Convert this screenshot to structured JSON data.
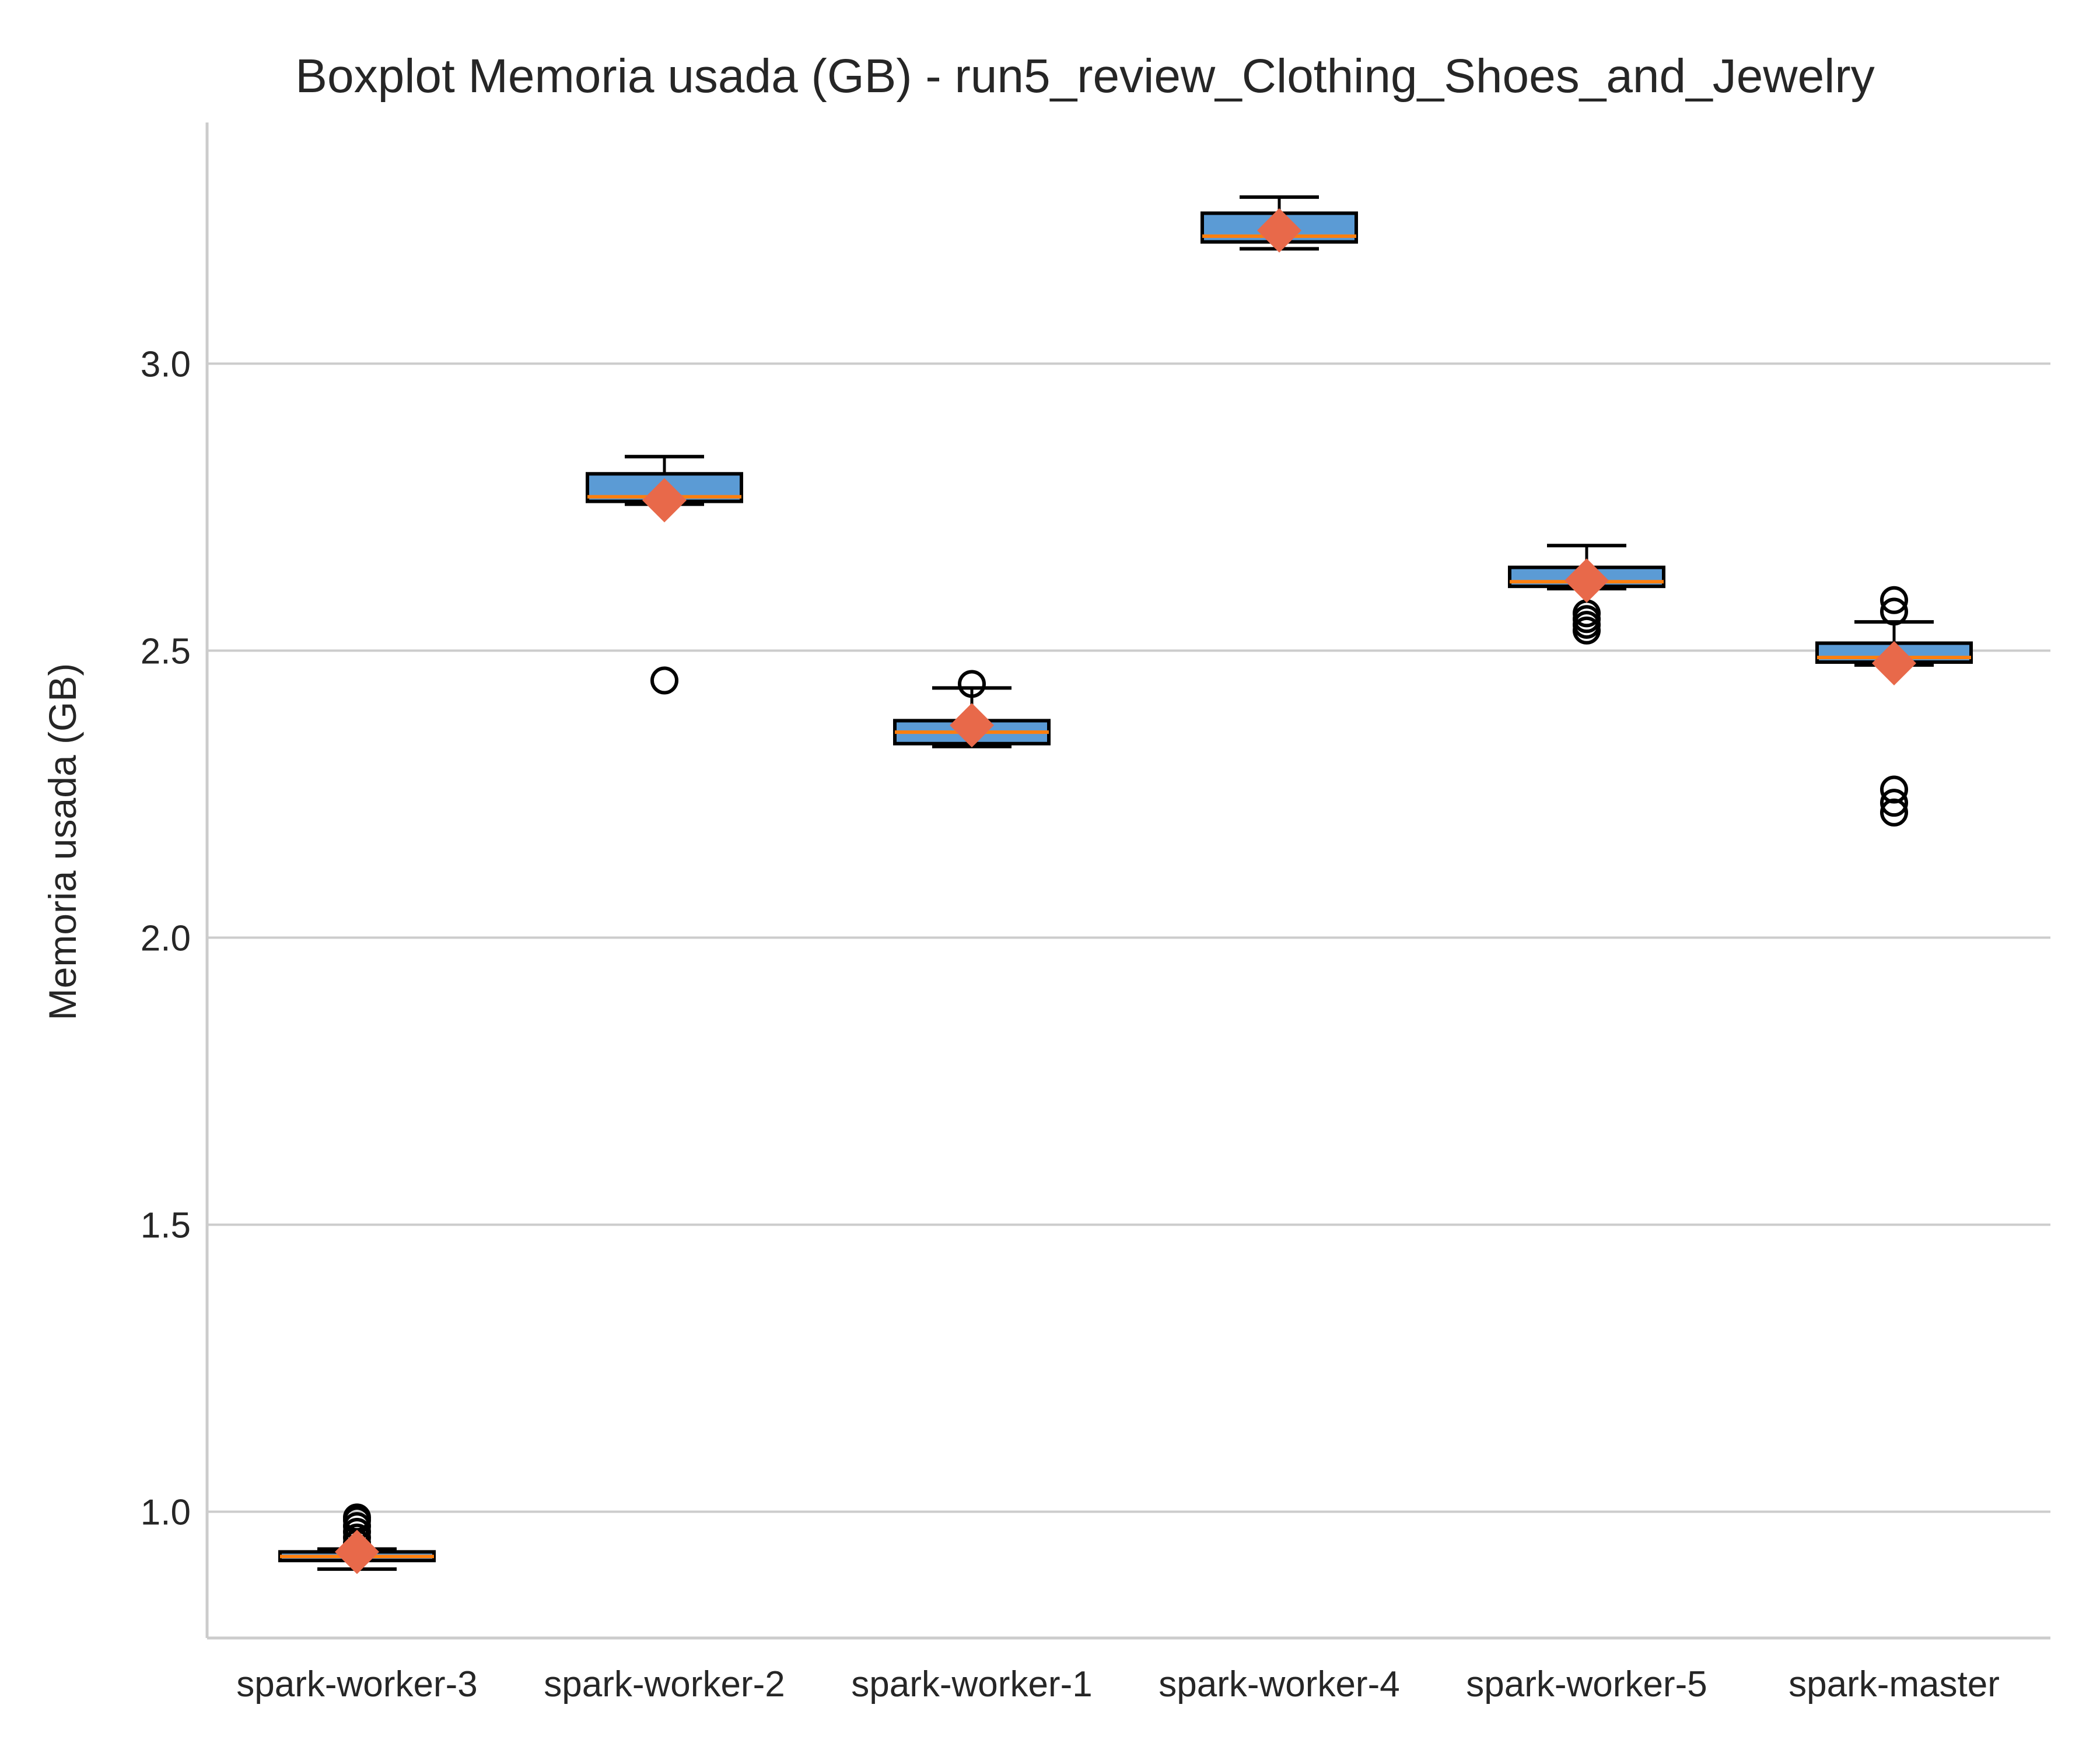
{
  "chart_data": {
    "type": "boxplot",
    "title": "Boxplot Memoria usada (GB) - run5_review_Clothing_Shoes_and_Jewelry",
    "xlabel": "",
    "ylabel": "Memoria usada (GB)",
    "ylim": [
      0.78,
      3.42
    ],
    "yticks": [
      1.0,
      1.5,
      2.0,
      2.5,
      3.0
    ],
    "ytick_labels": [
      "1.0",
      "1.5",
      "2.0",
      "2.5",
      "3.0"
    ],
    "grid": "horizontal",
    "colors": {
      "box_fill": "#5b9bd5",
      "box_edge": "#000000",
      "median": "#ff7f0e",
      "mean_marker": "#e8694a",
      "flier": "#000000",
      "grid": "#cccccc"
    },
    "categories": [
      "spark-worker-3",
      "spark-worker-2",
      "spark-worker-1",
      "spark-worker-4",
      "spark-worker-5",
      "spark-master"
    ],
    "boxes": [
      {
        "whisker_low": 0.9,
        "q1": 0.915,
        "median": 0.922,
        "q3": 0.93,
        "whisker_high": 0.935,
        "mean": 0.93,
        "outliers": [
          0.945,
          0.955,
          0.965,
          0.975,
          0.985,
          0.99
        ]
      },
      {
        "whisker_low": 2.755,
        "q1": 2.76,
        "median": 2.768,
        "q3": 2.808,
        "whisker_high": 2.838,
        "mean": 2.762,
        "outliers": [
          2.448
        ]
      },
      {
        "whisker_low": 2.333,
        "q1": 2.338,
        "median": 2.358,
        "q3": 2.378,
        "whisker_high": 2.435,
        "mean": 2.37,
        "outliers": [
          2.442
        ]
      },
      {
        "whisker_low": 3.2,
        "q1": 3.212,
        "median": 3.222,
        "q3": 3.262,
        "whisker_high": 3.29,
        "mean": 3.232,
        "outliers": []
      },
      {
        "whisker_low": 2.608,
        "q1": 2.612,
        "median": 2.62,
        "q3": 2.645,
        "whisker_high": 2.683,
        "mean": 2.622,
        "outliers": [
          2.535,
          2.545,
          2.555,
          2.565
        ]
      },
      {
        "whisker_low": 2.475,
        "q1": 2.48,
        "median": 2.488,
        "q3": 2.513,
        "whisker_high": 2.55,
        "mean": 2.478,
        "outliers": [
          2.218,
          2.235,
          2.258,
          2.568,
          2.588
        ]
      }
    ]
  }
}
